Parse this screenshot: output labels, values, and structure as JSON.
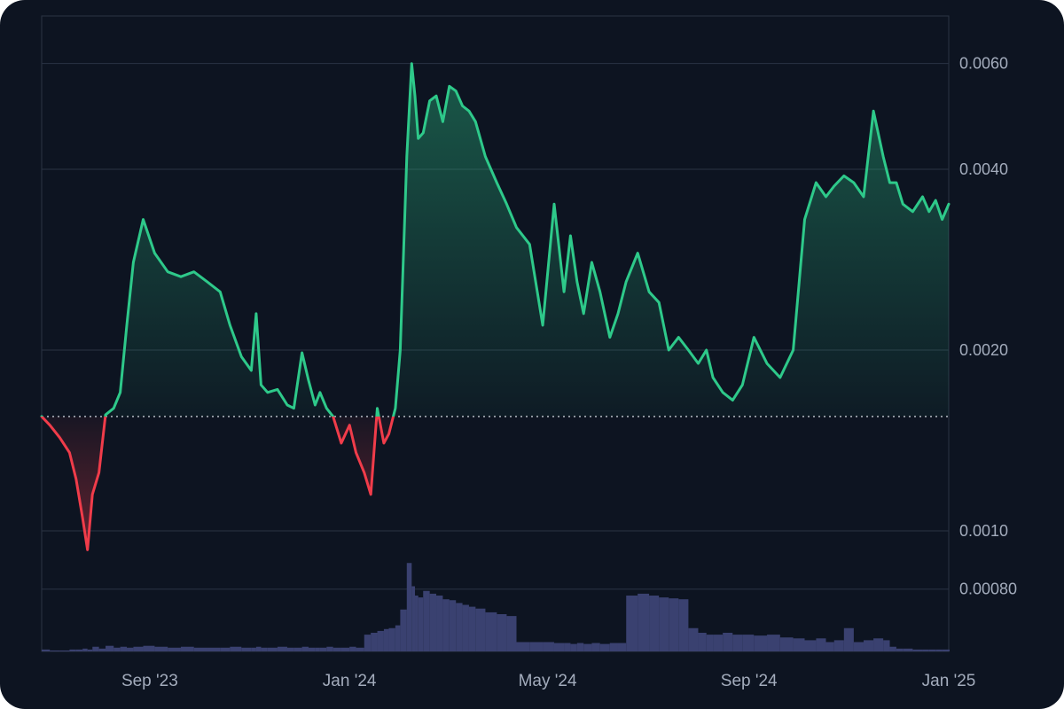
{
  "chart_data": {
    "type": "line",
    "y_scale": "log",
    "ylim": [
      0.00063,
      0.0072
    ],
    "baseline": 0.00155,
    "x_tick_labels": [
      "Sep '23",
      "Jan '24",
      "May '24",
      "Sep '24",
      "Jan '25"
    ],
    "x_tick_dates": [
      "2023-09-01",
      "2024-01-01",
      "2024-05-01",
      "2024-09-01",
      "2025-01-01"
    ],
    "y_tick_labels": [
      "0.0060",
      "0.0040",
      "0.0020",
      "0.0010",
      "0.00080"
    ],
    "y_tick_values": [
      0.006,
      0.004,
      0.002,
      0.001,
      0.0008
    ],
    "x_range": [
      "2023-06-27",
      "2025-01-01"
    ],
    "grid": true,
    "colors": {
      "above_baseline": "#2ec98a",
      "below_baseline": "#f03c4a",
      "volume": "#3a4170",
      "background": "#0d1421",
      "grid": "#2a3344",
      "axis_text": "#a3acbc"
    },
    "series": [
      {
        "x": [
          "2023-06-27",
          "2023-07-02",
          "2023-07-08",
          "2023-07-14",
          "2023-07-18",
          "2023-07-22",
          "2023-07-25",
          "2023-07-28",
          "2023-08-01",
          "2023-08-05",
          "2023-08-10",
          "2023-08-14",
          "2023-08-18",
          "2023-08-22",
          "2023-08-28",
          "2023-09-04",
          "2023-09-12",
          "2023-09-20",
          "2023-09-28",
          "2023-10-06",
          "2023-10-14",
          "2023-10-20",
          "2023-10-27",
          "2023-11-02",
          "2023-11-05",
          "2023-11-08",
          "2023-11-12",
          "2023-11-18",
          "2023-11-24",
          "2023-11-28",
          "2023-12-03",
          "2023-12-07",
          "2023-12-11",
          "2023-12-14",
          "2023-12-18",
          "2023-12-22",
          "2023-12-27",
          "2024-01-01",
          "2024-01-05",
          "2024-01-10",
          "2024-01-14",
          "2024-01-18",
          "2024-01-22",
          "2024-01-25",
          "2024-01-29",
          "2024-02-01",
          "2024-02-05",
          "2024-02-08",
          "2024-02-10",
          "2024-02-12",
          "2024-02-15",
          "2024-02-19",
          "2024-02-23",
          "2024-02-27",
          "2024-03-02",
          "2024-03-06",
          "2024-03-10",
          "2024-03-14",
          "2024-03-18",
          "2024-03-24",
          "2024-03-31",
          "2024-04-06",
          "2024-04-12",
          "2024-04-20",
          "2024-04-28",
          "2024-05-05",
          "2024-05-11",
          "2024-05-15",
          "2024-05-19",
          "2024-05-23",
          "2024-05-28",
          "2024-06-02",
          "2024-06-08",
          "2024-06-13",
          "2024-06-18",
          "2024-06-25",
          "2024-07-02",
          "2024-07-08",
          "2024-07-14",
          "2024-07-20",
          "2024-07-26",
          "2024-08-01",
          "2024-08-06",
          "2024-08-10",
          "2024-08-16",
          "2024-08-22",
          "2024-08-28",
          "2024-09-04",
          "2024-09-12",
          "2024-09-20",
          "2024-09-28",
          "2024-10-05",
          "2024-10-12",
          "2024-10-18",
          "2024-10-23",
          "2024-10-29",
          "2024-11-04",
          "2024-11-10",
          "2024-11-16",
          "2024-11-22",
          "2024-11-26",
          "2024-11-30",
          "2024-12-04",
          "2024-12-10",
          "2024-12-16",
          "2024-12-20",
          "2024-12-24",
          "2024-12-28",
          "2025-01-01"
        ],
        "y": [
          0.00155,
          0.0015,
          0.00143,
          0.00135,
          0.00122,
          0.00105,
          0.00093,
          0.00115,
          0.00125,
          0.00156,
          0.0016,
          0.0017,
          0.0022,
          0.0028,
          0.0033,
          0.0029,
          0.0027,
          0.00265,
          0.0027,
          0.0026,
          0.0025,
          0.0022,
          0.00195,
          0.00185,
          0.0023,
          0.00175,
          0.0017,
          0.00172,
          0.00162,
          0.0016,
          0.00198,
          0.00178,
          0.00162,
          0.0017,
          0.0016,
          0.00155,
          0.0014,
          0.0015,
          0.00135,
          0.00125,
          0.00115,
          0.0016,
          0.0014,
          0.00145,
          0.0016,
          0.002,
          0.0042,
          0.006,
          0.0053,
          0.0045,
          0.0046,
          0.0052,
          0.0053,
          0.0048,
          0.0055,
          0.0054,
          0.0051,
          0.005,
          0.0048,
          0.0042,
          0.0038,
          0.0035,
          0.0032,
          0.003,
          0.0022,
          0.0035,
          0.0025,
          0.0031,
          0.0026,
          0.0023,
          0.0028,
          0.0025,
          0.0021,
          0.0023,
          0.0026,
          0.0029,
          0.0025,
          0.0024,
          0.002,
          0.0021,
          0.002,
          0.0019,
          0.002,
          0.0018,
          0.0017,
          0.00165,
          0.00175,
          0.0021,
          0.0019,
          0.0018,
          0.002,
          0.0033,
          0.0038,
          0.0036,
          0.00375,
          0.0039,
          0.0038,
          0.0036,
          0.005,
          0.0042,
          0.0038,
          0.0038,
          0.0035,
          0.0034,
          0.0036,
          0.0034,
          0.00355,
          0.0033,
          0.0035
        ],
        "volume": [
          0.02,
          0.01,
          0.01,
          0.02,
          0.02,
          0.03,
          0.02,
          0.05,
          0.03,
          0.06,
          0.04,
          0.05,
          0.04,
          0.05,
          0.06,
          0.05,
          0.04,
          0.05,
          0.04,
          0.04,
          0.04,
          0.05,
          0.04,
          0.04,
          0.05,
          0.04,
          0.04,
          0.05,
          0.04,
          0.04,
          0.05,
          0.04,
          0.04,
          0.04,
          0.05,
          0.04,
          0.04,
          0.05,
          0.04,
          0.18,
          0.2,
          0.22,
          0.24,
          0.25,
          0.28,
          0.45,
          0.95,
          0.7,
          0.6,
          0.58,
          0.65,
          0.62,
          0.6,
          0.56,
          0.55,
          0.52,
          0.5,
          0.48,
          0.46,
          0.42,
          0.4,
          0.38,
          0.1,
          0.1,
          0.1,
          0.09,
          0.09,
          0.08,
          0.09,
          0.08,
          0.09,
          0.08,
          0.09,
          0.09,
          0.6,
          0.62,
          0.6,
          0.58,
          0.57,
          0.56,
          0.25,
          0.2,
          0.18,
          0.18,
          0.2,
          0.18,
          0.18,
          0.17,
          0.18,
          0.15,
          0.14,
          0.12,
          0.14,
          0.1,
          0.12,
          0.25,
          0.1,
          0.12,
          0.14,
          0.12,
          0.05,
          0.03,
          0.03,
          0.02,
          0.02,
          0.02,
          0.02,
          0.02,
          0.02
        ]
      }
    ]
  }
}
